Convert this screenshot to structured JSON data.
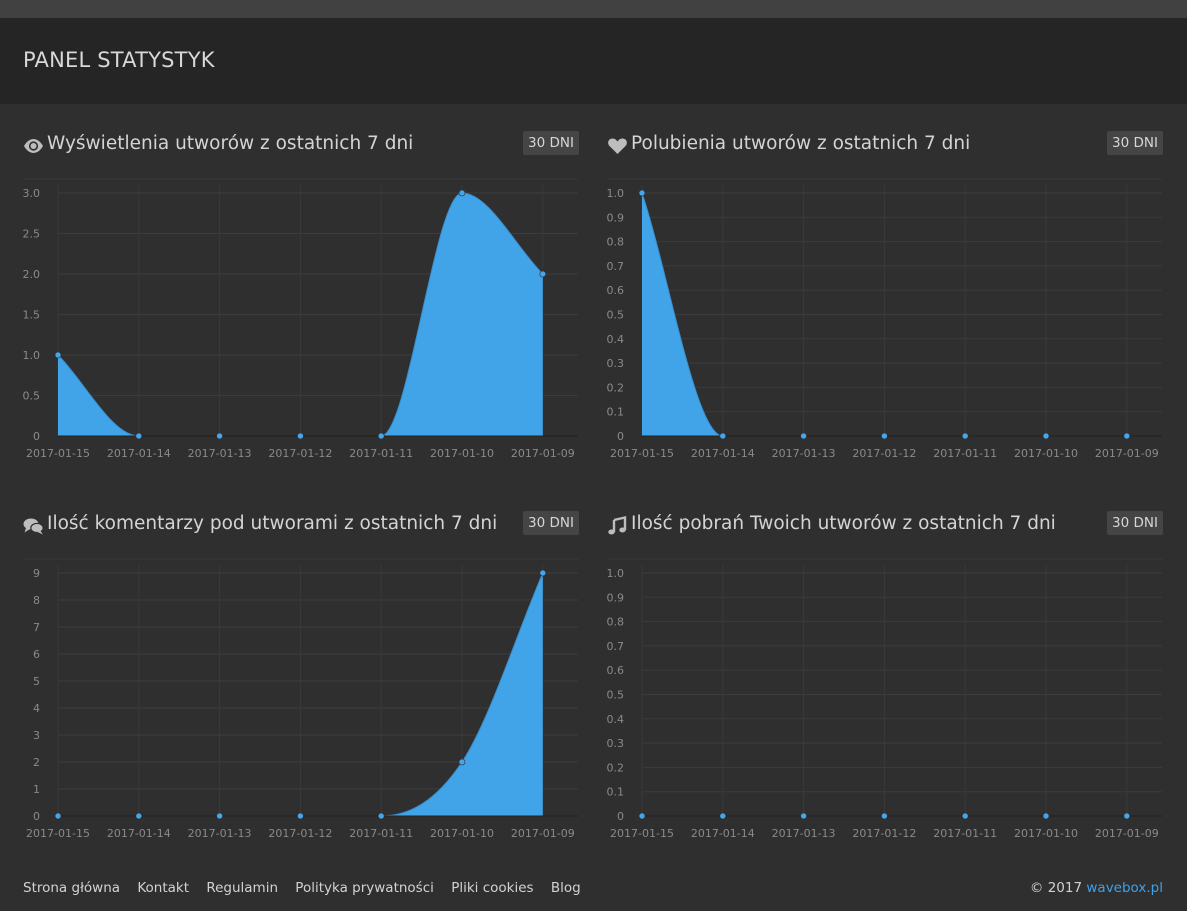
{
  "header": {
    "title": "PANEL STATYSTYK"
  },
  "panels": [
    {
      "title": "Wyświetlenia utworów z ostatnich 7 dni",
      "icon": "eye-icon",
      "period_label": "30 DNI"
    },
    {
      "title": "Polubienia utworów z ostatnich 7 dni",
      "icon": "heart-icon",
      "period_label": "30 DNI"
    },
    {
      "title": "Ilość komentarzy pod utworami z ostatnich 7 dni",
      "icon": "comments-icon",
      "period_label": "30 DNI"
    },
    {
      "title": "Ilość pobrań Twoich utworów z ostatnich 7 dni",
      "icon": "music-icon",
      "period_label": "30 DNI"
    }
  ],
  "chart_data": [
    {
      "type": "area",
      "categories": [
        "2017-01-15",
        "2017-01-14",
        "2017-01-13",
        "2017-01-12",
        "2017-01-11",
        "2017-01-10",
        "2017-01-09"
      ],
      "values": [
        1,
        0,
        0,
        0,
        0,
        3,
        2
      ],
      "ylim": [
        0,
        3
      ],
      "yticks": [
        "0",
        "0.5",
        "1.0",
        "1.5",
        "2.0",
        "2.5",
        "3.0"
      ],
      "grid": true,
      "color": "#41a3e8"
    },
    {
      "type": "area",
      "categories": [
        "2017-01-15",
        "2017-01-14",
        "2017-01-13",
        "2017-01-12",
        "2017-01-11",
        "2017-01-10",
        "2017-01-09"
      ],
      "values": [
        1,
        0,
        0,
        0,
        0,
        0,
        0
      ],
      "ylim": [
        0,
        1
      ],
      "yticks": [
        "0",
        "0.1",
        "0.2",
        "0.3",
        "0.4",
        "0.5",
        "0.6",
        "0.7",
        "0.8",
        "0.9",
        "1.0"
      ],
      "grid": true,
      "color": "#41a3e8"
    },
    {
      "type": "area",
      "categories": [
        "2017-01-15",
        "2017-01-14",
        "2017-01-13",
        "2017-01-12",
        "2017-01-11",
        "2017-01-10",
        "2017-01-09"
      ],
      "values": [
        0,
        0,
        0,
        0,
        0,
        2,
        9
      ],
      "ylim": [
        0,
        9
      ],
      "yticks": [
        "0",
        "1",
        "2",
        "3",
        "4",
        "5",
        "6",
        "7",
        "8",
        "9"
      ],
      "grid": true,
      "color": "#41a3e8"
    },
    {
      "type": "area",
      "categories": [
        "2017-01-15",
        "2017-01-14",
        "2017-01-13",
        "2017-01-12",
        "2017-01-11",
        "2017-01-10",
        "2017-01-09"
      ],
      "values": [
        0,
        0,
        0,
        0,
        0,
        0,
        0
      ],
      "ylim": [
        0,
        1
      ],
      "yticks": [
        "0",
        "0.1",
        "0.2",
        "0.3",
        "0.4",
        "0.5",
        "0.6",
        "0.7",
        "0.8",
        "0.9",
        "1.0"
      ],
      "grid": true,
      "color": "#41a3e8"
    }
  ],
  "footer": {
    "links": [
      "Strona główna",
      "Kontakt",
      "Regulamin",
      "Polityka prywatności",
      "Pliki cookies",
      "Blog"
    ],
    "copyright_prefix": "© 2017 ",
    "brand": "wavebox.pl"
  }
}
